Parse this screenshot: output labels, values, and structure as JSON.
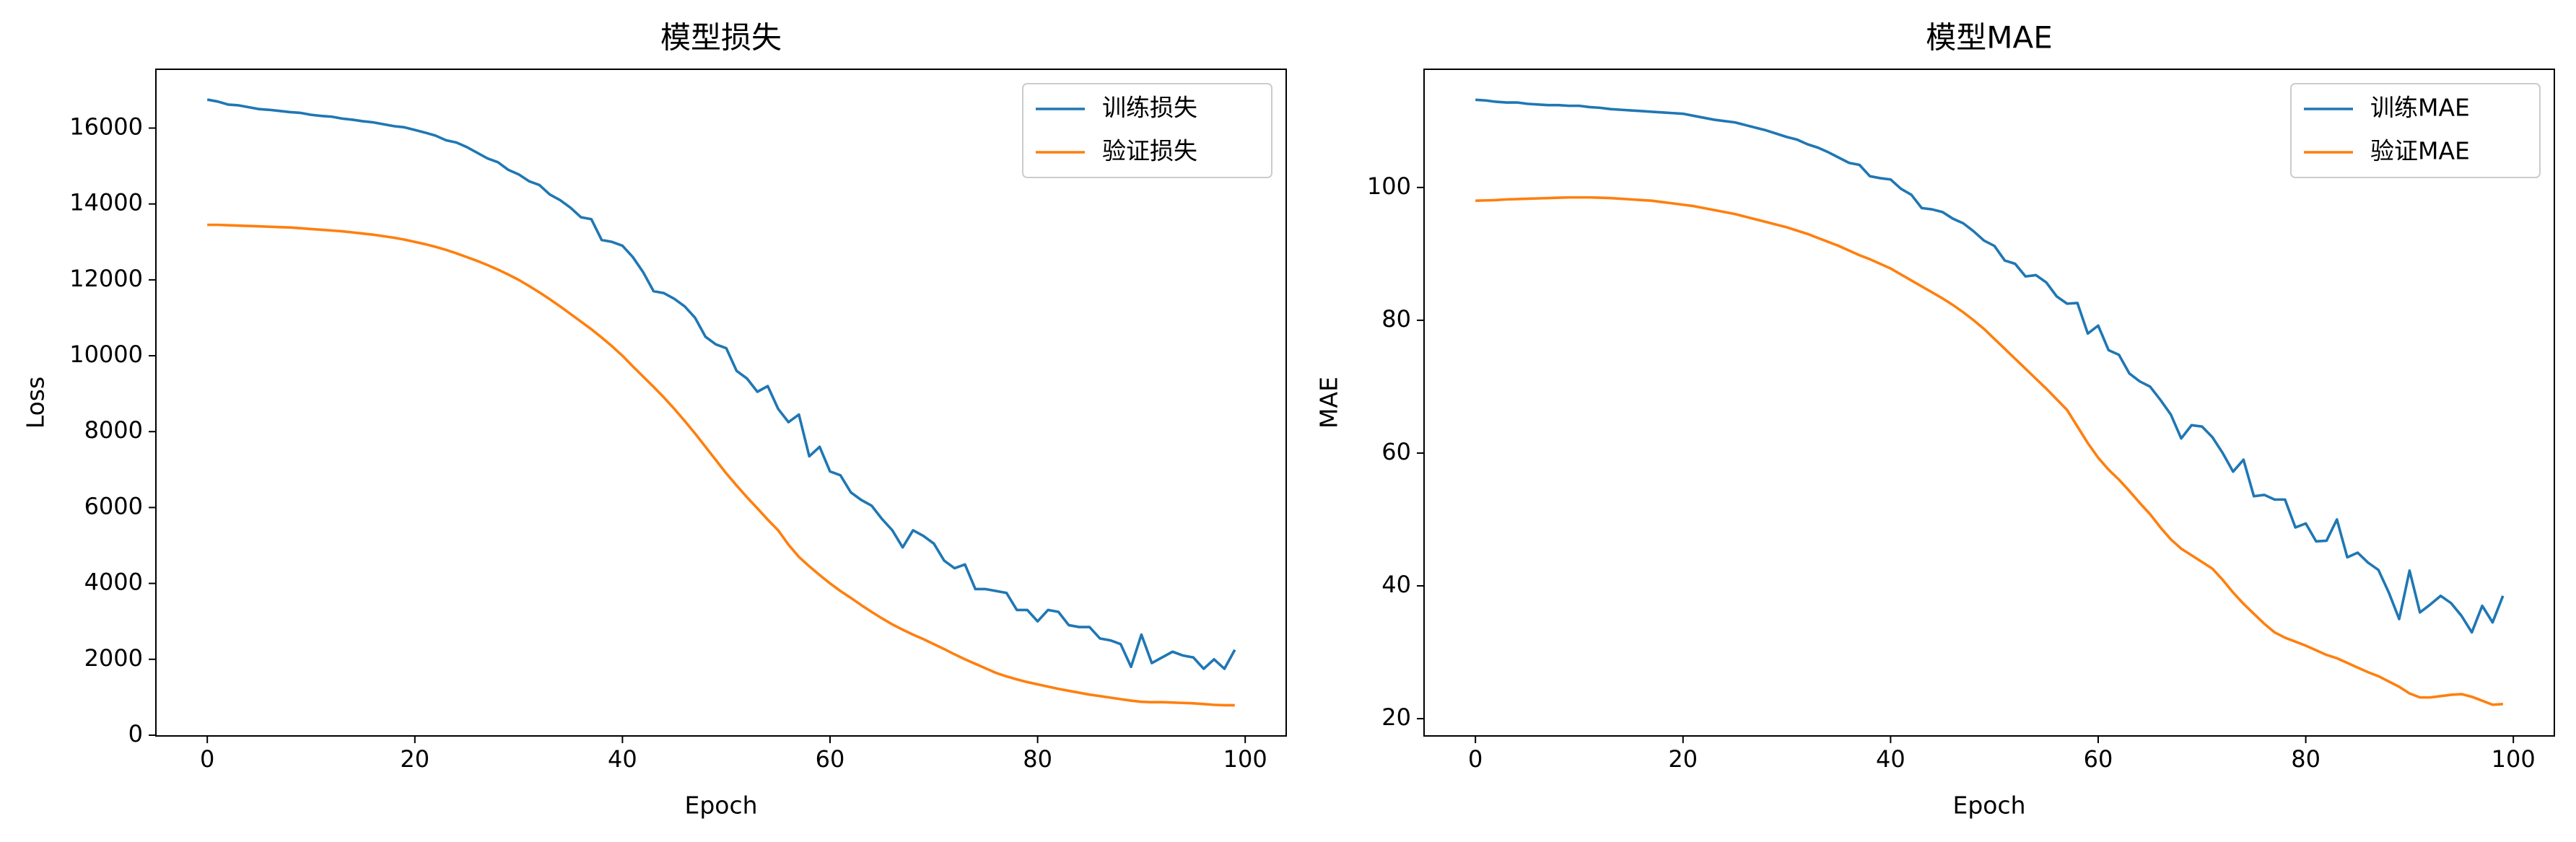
{
  "chart_data": [
    {
      "type": "line",
      "title": "模型损失",
      "xlabel": "Epoch",
      "ylabel": "Loss",
      "x": [
        0,
        1,
        2,
        3,
        4,
        5,
        6,
        7,
        8,
        9,
        10,
        11,
        12,
        13,
        14,
        15,
        16,
        17,
        18,
        19,
        20,
        21,
        22,
        23,
        24,
        25,
        26,
        27,
        28,
        29,
        30,
        31,
        32,
        33,
        34,
        35,
        36,
        37,
        38,
        39,
        40,
        41,
        42,
        43,
        44,
        45,
        46,
        47,
        48,
        49,
        50,
        51,
        52,
        53,
        54,
        55,
        56,
        57,
        58,
        59,
        60,
        61,
        62,
        63,
        64,
        65,
        66,
        67,
        68,
        69,
        70,
        71,
        72,
        73,
        74,
        75,
        76,
        77,
        78,
        79,
        80,
        81,
        82,
        83,
        84,
        85,
        86,
        87,
        88,
        89,
        90,
        91,
        92,
        93,
        94,
        95,
        96,
        97,
        98,
        99
      ],
      "series": [
        {
          "name": "训练损失",
          "color": "#1f77b4",
          "values": [
            16750,
            16700,
            16620,
            16600,
            16550,
            16500,
            16480,
            16450,
            16420,
            16400,
            16350,
            16320,
            16300,
            16250,
            16220,
            16180,
            16150,
            16100,
            16050,
            16020,
            15950,
            15880,
            15800,
            15680,
            15620,
            15500,
            15350,
            15200,
            15100,
            14900,
            14780,
            14600,
            14500,
            14250,
            14100,
            13900,
            13650,
            13600,
            13050,
            13000,
            12900,
            12600,
            12200,
            11700,
            11650,
            11500,
            11300,
            11000,
            10500,
            10300,
            10200,
            9600,
            9400,
            9050,
            9200,
            8600,
            8250,
            8450,
            7350,
            7600,
            6950,
            6850,
            6400,
            6200,
            6050,
            5700,
            5400,
            4950,
            5400,
            5250,
            5050,
            4600,
            4400,
            4500,
            3850,
            3850,
            3800,
            3750,
            3300,
            3300,
            3000,
            3300,
            3250,
            2900,
            2850,
            2850,
            2550,
            2500,
            2400,
            1800,
            2650,
            1900,
            2050,
            2200,
            2100,
            2050,
            1750,
            2000,
            1750,
            2250
          ]
        },
        {
          "name": "验证损失",
          "color": "#ff7f0e",
          "values": [
            13450,
            13450,
            13440,
            13430,
            13420,
            13410,
            13400,
            13390,
            13380,
            13360,
            13340,
            13320,
            13300,
            13280,
            13250,
            13220,
            13190,
            13150,
            13110,
            13060,
            13000,
            12940,
            12870,
            12790,
            12700,
            12600,
            12500,
            12390,
            12270,
            12140,
            12000,
            11840,
            11670,
            11490,
            11300,
            11100,
            10900,
            10700,
            10480,
            10250,
            10000,
            9720,
            9450,
            9180,
            8900,
            8600,
            8280,
            7950,
            7600,
            7250,
            6900,
            6580,
            6270,
            5980,
            5680,
            5400,
            5020,
            4700,
            4450,
            4220,
            4000,
            3800,
            3620,
            3430,
            3250,
            3080,
            2920,
            2780,
            2650,
            2530,
            2400,
            2270,
            2130,
            2000,
            1880,
            1760,
            1640,
            1550,
            1470,
            1400,
            1340,
            1280,
            1220,
            1170,
            1120,
            1070,
            1030,
            990,
            950,
            910,
            880,
            870,
            870,
            860,
            850,
            840,
            820,
            800,
            790,
            790
          ]
        }
      ],
      "xlim": [
        -4.95,
        103.95
      ],
      "ylim": [
        -20,
        17550
      ],
      "xticks": [
        0,
        20,
        40,
        60,
        80,
        100
      ],
      "yticks": [
        0,
        2000,
        4000,
        6000,
        8000,
        10000,
        12000,
        14000,
        16000
      ],
      "legend": "upper right"
    },
    {
      "type": "line",
      "title": "模型MAE",
      "xlabel": "Epoch",
      "ylabel": "MAE",
      "x": [
        0,
        1,
        2,
        3,
        4,
        5,
        6,
        7,
        8,
        9,
        10,
        11,
        12,
        13,
        14,
        15,
        16,
        17,
        18,
        19,
        20,
        21,
        22,
        23,
        24,
        25,
        26,
        27,
        28,
        29,
        30,
        31,
        32,
        33,
        34,
        35,
        36,
        37,
        38,
        39,
        40,
        41,
        42,
        43,
        44,
        45,
        46,
        47,
        48,
        49,
        50,
        51,
        52,
        53,
        54,
        55,
        56,
        57,
        58,
        59,
        60,
        61,
        62,
        63,
        64,
        65,
        66,
        67,
        68,
        69,
        70,
        71,
        72,
        73,
        74,
        75,
        76,
        77,
        78,
        79,
        80,
        81,
        82,
        83,
        84,
        85,
        86,
        87,
        88,
        89,
        90,
        91,
        92,
        93,
        94,
        95,
        96,
        97,
        98,
        99
      ],
      "series": [
        {
          "name": "训练MAE",
          "color": "#1f77b4",
          "values": [
            113.2,
            113.1,
            112.9,
            112.8,
            112.8,
            112.6,
            112.5,
            112.4,
            112.4,
            112.3,
            112.3,
            112.1,
            112.0,
            111.8,
            111.7,
            111.6,
            111.5,
            111.4,
            111.3,
            111.2,
            111.1,
            110.8,
            110.5,
            110.2,
            110.0,
            109.8,
            109.4,
            109.0,
            108.6,
            108.1,
            107.6,
            107.2,
            106.5,
            106.0,
            105.3,
            104.5,
            103.7,
            103.4,
            101.7,
            101.4,
            101.2,
            99.8,
            98.9,
            96.9,
            96.7,
            96.3,
            95.3,
            94.6,
            93.4,
            92.0,
            91.2,
            89.0,
            88.5,
            86.6,
            86.8,
            85.7,
            83.6,
            82.5,
            82.6,
            78.0,
            79.2,
            75.5,
            74.8,
            72.0,
            70.8,
            70.0,
            68.0,
            65.8,
            62.2,
            64.2,
            64.0,
            62.4,
            60.0,
            57.2,
            59.0,
            53.5,
            53.7,
            53.0,
            53.0,
            48.8,
            49.4,
            46.7,
            46.8,
            50.0,
            44.3,
            45.0,
            43.5,
            42.4,
            39.0,
            35.0,
            42.3,
            36.0,
            37.2,
            38.5,
            37.4,
            35.5,
            33.0,
            37.0,
            34.5,
            38.5
          ]
        },
        {
          "name": "验证MAE",
          "color": "#ff7f0e",
          "values": [
            98.0,
            98.05,
            98.1,
            98.2,
            98.25,
            98.3,
            98.35,
            98.4,
            98.45,
            98.5,
            98.5,
            98.5,
            98.45,
            98.4,
            98.3,
            98.2,
            98.1,
            98.0,
            97.8,
            97.6,
            97.4,
            97.2,
            96.9,
            96.6,
            96.3,
            96.0,
            95.6,
            95.2,
            94.8,
            94.4,
            94.0,
            93.5,
            93.0,
            92.4,
            91.8,
            91.2,
            90.5,
            89.8,
            89.2,
            88.5,
            87.8,
            86.9,
            86.0,
            85.1,
            84.2,
            83.3,
            82.3,
            81.2,
            80.0,
            78.7,
            77.2,
            75.7,
            74.2,
            72.7,
            71.2,
            69.7,
            68.1,
            66.5,
            64.0,
            61.5,
            59.3,
            57.5,
            56.0,
            54.3,
            52.5,
            50.8,
            48.8,
            47.0,
            45.6,
            44.6,
            43.6,
            42.6,
            40.9,
            39.0,
            37.3,
            35.8,
            34.3,
            33.0,
            32.2,
            31.6,
            31.0,
            30.3,
            29.6,
            29.1,
            28.4,
            27.7,
            27.0,
            26.4,
            25.6,
            24.8,
            23.8,
            23.2,
            23.2,
            23.4,
            23.6,
            23.7,
            23.3,
            22.7,
            22.1,
            22.2
          ]
        }
      ],
      "xlim": [
        -4.95,
        103.95
      ],
      "ylim": [
        17.4,
        117.8
      ],
      "xticks": [
        0,
        20,
        40,
        60,
        80,
        100
      ],
      "yticks": [
        20,
        40,
        60,
        80,
        100
      ],
      "legend": "upper right"
    }
  ]
}
